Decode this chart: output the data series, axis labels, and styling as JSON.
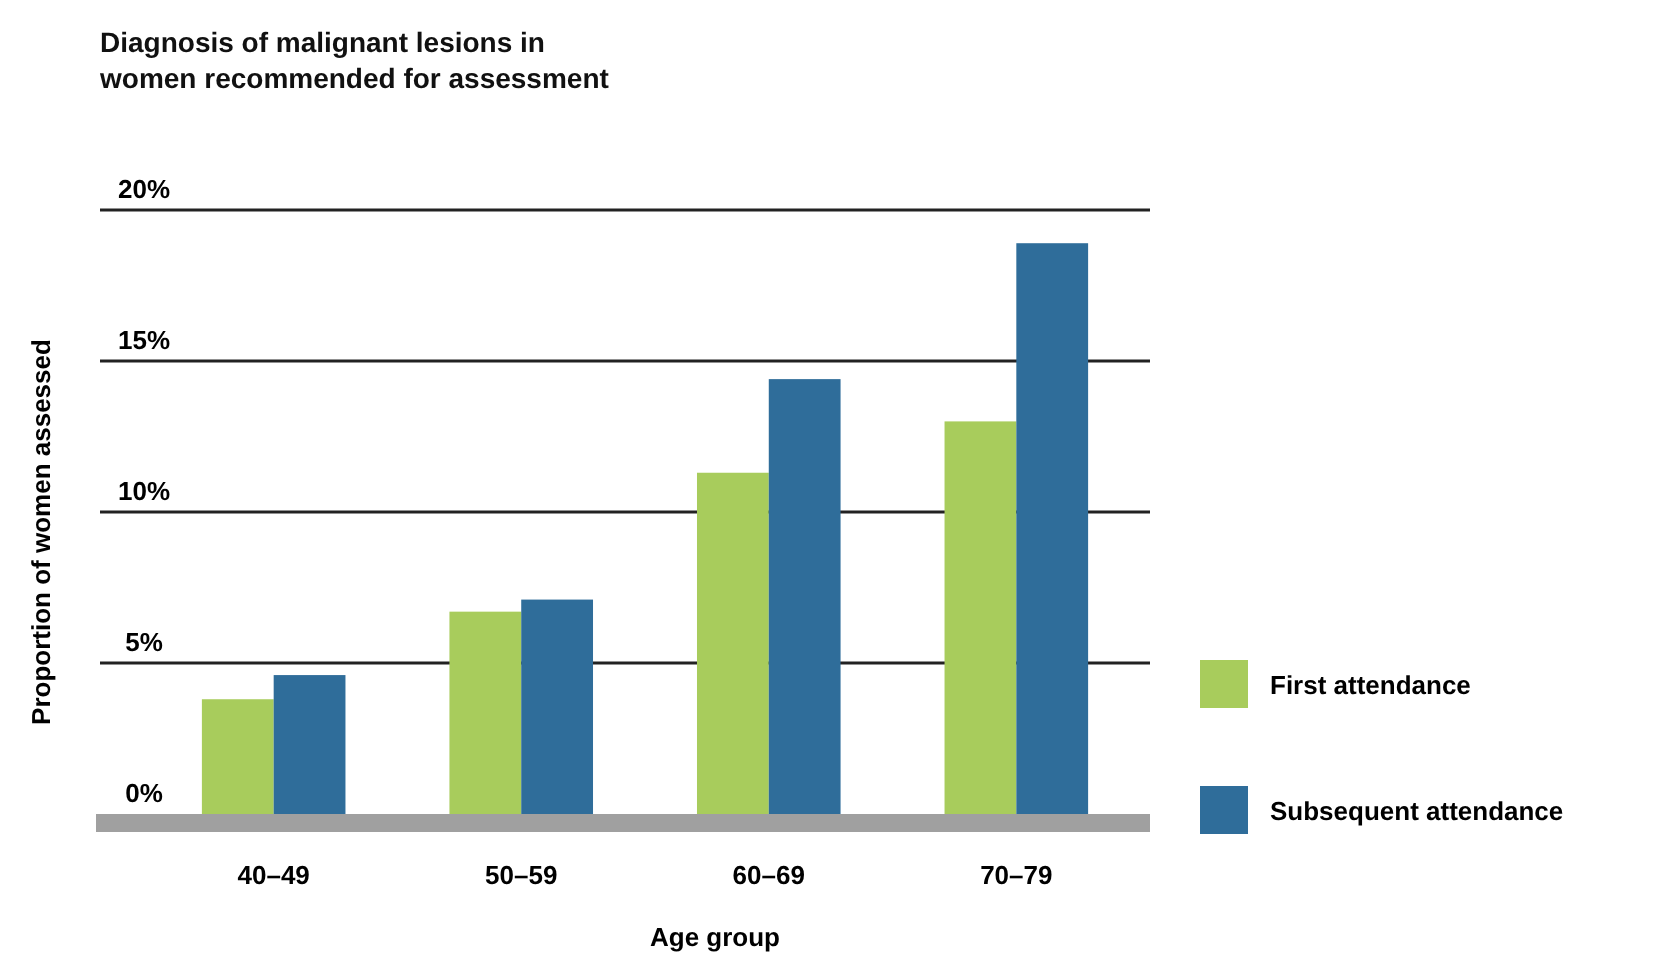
{
  "chart_data": {
    "type": "bar",
    "title": "Diagnosis of malignant lesions in\nwomen recommended for assessment",
    "xlabel": "Age group",
    "ylabel": "Proportion of women assessed",
    "categories": [
      "40–49",
      "50–59",
      "60–69",
      "70–79"
    ],
    "series": [
      {
        "name": "First attendance",
        "color": "#a8cc5c",
        "values": [
          3.8,
          6.7,
          11.3,
          13.0
        ]
      },
      {
        "name": "Subsequent attendance",
        "color": "#2f6d9a",
        "values": [
          4.6,
          7.1,
          14.4,
          18.9
        ]
      }
    ],
    "ylim": [
      0,
      20
    ],
    "yticks": [
      {
        "value": 0,
        "label": "0%"
      },
      {
        "value": 5,
        "label": "5%"
      },
      {
        "value": 10,
        "label": "10%"
      },
      {
        "value": 15,
        "label": "15%"
      },
      {
        "value": 20,
        "label": "20%"
      }
    ],
    "grid": "y",
    "legend": "right"
  }
}
